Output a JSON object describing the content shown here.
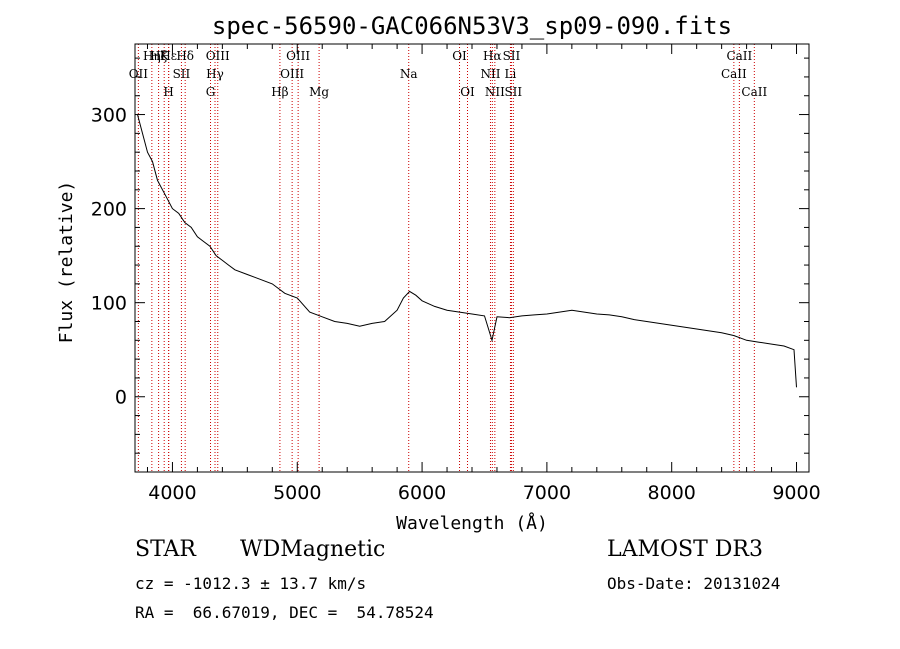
{
  "chart_data": {
    "type": "line",
    "title": "spec-56590-GAC066N53V3_sp09-090.fits",
    "xlabel": "Wavelength (Å)",
    "ylabel": "Flux (relative)",
    "xlim": [
      3700,
      9100
    ],
    "ylim": [
      -80,
      375
    ],
    "x_ticks": [
      4000,
      5000,
      6000,
      7000,
      8000,
      9000
    ],
    "y_ticks": [
      0,
      100,
      200,
      300
    ],
    "grid": false,
    "series": [
      {
        "name": "flux",
        "x": [
          3720,
          3760,
          3800,
          3840,
          3880,
          3920,
          3960,
          4000,
          4050,
          4100,
          4150,
          4200,
          4250,
          4300,
          4350,
          4400,
          4450,
          4500,
          4600,
          4700,
          4800,
          4900,
          5000,
          5100,
          5200,
          5300,
          5400,
          5500,
          5600,
          5700,
          5800,
          5850,
          5900,
          5950,
          6000,
          6100,
          6200,
          6300,
          6400,
          6500,
          6560,
          6600,
          6700,
          6800,
          6900,
          7000,
          7100,
          7200,
          7300,
          7400,
          7500,
          7600,
          7700,
          7800,
          7900,
          8000,
          8100,
          8200,
          8300,
          8400,
          8500,
          8600,
          8700,
          8800,
          8900,
          8980,
          9000
        ],
        "y": [
          300,
          280,
          260,
          250,
          230,
          220,
          210,
          200,
          195,
          185,
          180,
          170,
          165,
          160,
          150,
          145,
          140,
          135,
          130,
          125,
          120,
          110,
          105,
          90,
          85,
          80,
          78,
          75,
          78,
          80,
          92,
          105,
          112,
          108,
          102,
          96,
          92,
          90,
          88,
          86,
          60,
          85,
          84,
          86,
          87,
          88,
          90,
          92,
          90,
          88,
          87,
          85,
          82,
          80,
          78,
          76,
          74,
          72,
          70,
          68,
          65,
          60,
          58,
          56,
          54,
          50,
          10
        ]
      }
    ],
    "lines": [
      {
        "name": "OII",
        "wave": 3727,
        "row": 2
      },
      {
        "name": "Hη",
        "wave": 3835,
        "row": 1
      },
      {
        "name": "Hζ",
        "wave": 3889,
        "row": 1
      },
      {
        "name": "Hε",
        "wave": 3970,
        "row": 1
      },
      {
        "name": "Hδ",
        "wave": 4102,
        "row": 1
      },
      {
        "name": "K",
        "wave": 3934,
        "row": 1
      },
      {
        "name": "H",
        "wave": 3969,
        "row": 3
      },
      {
        "name": "SII",
        "wave": 4072,
        "row": 2
      },
      {
        "name": "G",
        "wave": 4305,
        "row": 3
      },
      {
        "name": "Hγ",
        "wave": 4341,
        "row": 2
      },
      {
        "name": "OIII",
        "wave": 4363,
        "row": 1
      },
      {
        "name": "Hβ",
        "wave": 4861,
        "row": 3
      },
      {
        "name": "OIII",
        "wave": 4959,
        "row": 2
      },
      {
        "name": "OIII",
        "wave": 5007,
        "row": 1
      },
      {
        "name": "Mg",
        "wave": 5175,
        "row": 3
      },
      {
        "name": "Na",
        "wave": 5893,
        "row": 2
      },
      {
        "name": "OI",
        "wave": 6300,
        "row": 1
      },
      {
        "name": "OI",
        "wave": 6364,
        "row": 3
      },
      {
        "name": "NII",
        "wave": 6548,
        "row": 2
      },
      {
        "name": "Hα",
        "wave": 6563,
        "row": 1
      },
      {
        "name": "NII",
        "wave": 6583,
        "row": 3
      },
      {
        "name": "Li",
        "wave": 6708,
        "row": 2
      },
      {
        "name": "SII",
        "wave": 6716,
        "row": 1
      },
      {
        "name": "SII",
        "wave": 6731,
        "row": 3
      },
      {
        "name": "CaII",
        "wave": 8498,
        "row": 2
      },
      {
        "name": "CaII",
        "wave": 8542,
        "row": 1
      },
      {
        "name": "CaII",
        "wave": 8662,
        "row": 3
      }
    ]
  },
  "info": {
    "object_class": "STAR",
    "subclass": "WDMagnetic",
    "survey": "LAMOST DR3",
    "redshift_line": "cz = -1012.3 ± 13.7 km/s",
    "obs_date": "Obs-Date: 20131024",
    "coords_line": "RA =  66.67019, DEC =  54.78524"
  },
  "colors": {
    "spectrum": "#000000",
    "line_marker": "#cc0000",
    "axes": "#000000"
  }
}
